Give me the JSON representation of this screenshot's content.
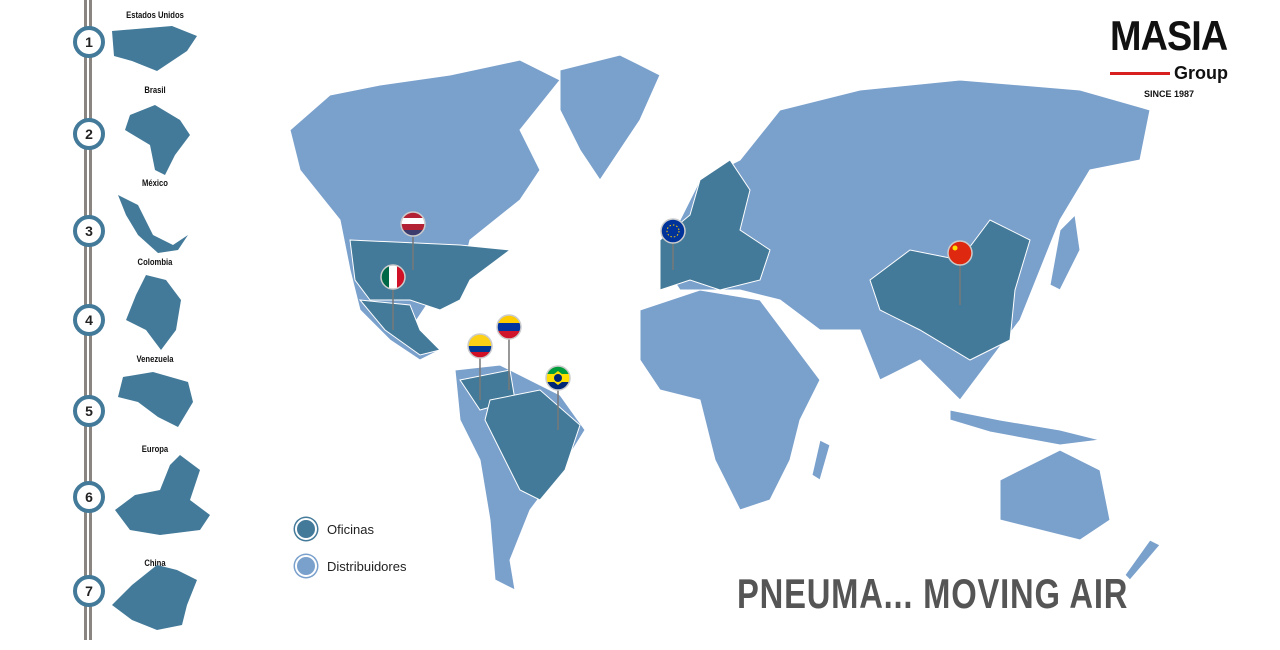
{
  "colors": {
    "offices": "#437a99",
    "distributors": "#7aa0cc",
    "rail": "#8a8580",
    "title": "#555555",
    "logo_red": "#d92020"
  },
  "sidebar": {
    "items": [
      {
        "number": "1",
        "label": "Estados Unidos"
      },
      {
        "number": "2",
        "label": "Brasil"
      },
      {
        "number": "3",
        "label": "México"
      },
      {
        "number": "4",
        "label": "Colombia"
      },
      {
        "number": "5",
        "label": "Venezuela"
      },
      {
        "number": "6",
        "label": "Europa"
      },
      {
        "number": "7",
        "label": "China"
      }
    ]
  },
  "logo": {
    "name": "MASIA",
    "sub": "Group",
    "since": "SINCE 1987"
  },
  "legend": {
    "offices": "Oficinas",
    "distributors": "Distribuidores"
  },
  "title": "PNEUMA... MOVING AIR",
  "pins": [
    "usa-flag",
    "mexico-flag",
    "venezuela-flag",
    "colombia-flag",
    "brazil-flag",
    "eu-flag",
    "china-flag"
  ]
}
